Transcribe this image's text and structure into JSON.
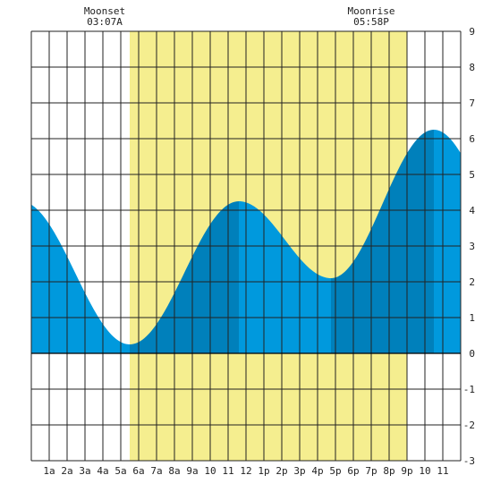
{
  "chart_data": {
    "type": "area",
    "title": "",
    "xlabel": "",
    "ylabel": "",
    "ylim": [
      -3,
      9
    ],
    "yticks": [
      -3,
      -2,
      -1,
      0,
      1,
      2,
      3,
      4,
      5,
      6,
      7,
      8,
      9
    ],
    "xlim": [
      0,
      24
    ],
    "xticks": [
      "1a",
      "2a",
      "3a",
      "4a",
      "5a",
      "6a",
      "7a",
      "8a",
      "9a",
      "10",
      "11",
      "12",
      "1p",
      "2p",
      "3p",
      "4p",
      "5p",
      "6p",
      "7p",
      "8p",
      "9p",
      "10",
      "11"
    ],
    "grid": true,
    "daylight": {
      "start_hour": 5.5,
      "end_hour": 21
    },
    "tide_extremes": [
      {
        "hour": 5.5,
        "height": 0.25,
        "kind": "low"
      },
      {
        "hour": 11.6,
        "height": 4.25,
        "kind": "high"
      },
      {
        "hour": 16.75,
        "height": 2.1,
        "kind": "low"
      },
      {
        "hour": 22.5,
        "height": 6.25,
        "kind": "high"
      }
    ],
    "start": {
      "hour": 0,
      "height": 5.1
    },
    "end": {
      "hour": 24,
      "height": 5.7
    },
    "annotations": [
      {
        "label": "Moonset",
        "time": "03:07A"
      },
      {
        "label": "Moonrise",
        "time": "05:58P"
      }
    ],
    "colors": {
      "water": "#0099dd",
      "water_shaded": "#0080bb",
      "daylight": "#f5ee8f",
      "grid": "#222222",
      "zero_line": "#000000"
    }
  }
}
